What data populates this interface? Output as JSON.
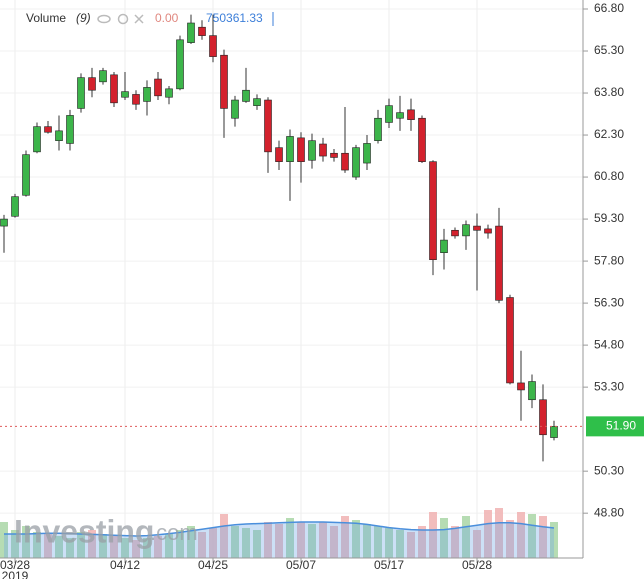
{
  "chart_data": {
    "type": "candlestick",
    "categories": [
      null,
      "03/28",
      null,
      null,
      null,
      null,
      null,
      null,
      null,
      null,
      null,
      "04/12",
      null,
      null,
      null,
      null,
      null,
      null,
      null,
      "04/25",
      null,
      null,
      null,
      null,
      null,
      null,
      null,
      "05/07",
      null,
      null,
      null,
      null,
      null,
      null,
      null,
      "05/17",
      null,
      null,
      null,
      null,
      null,
      null,
      null,
      "05/28",
      null,
      null,
      null,
      null,
      null,
      null,
      null
    ],
    "year_label": "2019",
    "open": [
      59.05,
      59.4,
      60.15,
      61.7,
      62.6,
      62.1,
      62.0,
      63.25,
      64.35,
      64.2,
      64.45,
      63.65,
      63.75,
      63.5,
      64.3,
      63.65,
      63.95,
      65.6,
      66.15,
      65.85,
      65.15,
      62.9,
      63.5,
      63.35,
      63.55,
      61.85,
      61.35,
      62.2,
      61.4,
      61.98,
      61.65,
      61.65,
      60.8,
      61.3,
      62.1,
      62.75,
      62.9,
      63.2,
      62.9,
      61.35,
      58.1,
      58.9,
      58.7,
      59.05,
      58.95,
      59.05,
      56.5,
      53.45,
      52.85,
      52.85,
      51.5
    ],
    "high": [
      59.45,
      60.2,
      61.75,
      62.75,
      62.8,
      63.0,
      63.2,
      64.5,
      64.7,
      64.7,
      64.55,
      64.55,
      63.9,
      64.25,
      64.55,
      64.05,
      65.85,
      66.6,
      66.4,
      66.6,
      65.35,
      63.7,
      64.7,
      63.75,
      63.65,
      62.1,
      62.5,
      62.4,
      62.35,
      62.2,
      61.8,
      63.3,
      61.95,
      62.3,
      63.2,
      63.6,
      63.7,
      63.6,
      63.0,
      61.4,
      58.95,
      59.0,
      59.25,
      59.5,
      59.1,
      59.7,
      56.6,
      54.6,
      53.75,
      53.4,
      52.1
    ],
    "low": [
      58.1,
      59.35,
      60.1,
      61.65,
      62.35,
      61.75,
      61.75,
      63.1,
      63.65,
      64.1,
      63.3,
      63.55,
      63.2,
      63.0,
      63.55,
      63.4,
      63.9,
      65.55,
      65.7,
      64.9,
      62.2,
      62.6,
      63.45,
      63.2,
      60.95,
      61.05,
      59.95,
      60.6,
      61.1,
      61.35,
      61.35,
      60.95,
      60.7,
      61.05,
      62.0,
      62.55,
      62.45,
      62.45,
      61.3,
      57.3,
      57.5,
      58.6,
      58.2,
      56.75,
      58.6,
      56.3,
      53.4,
      52.1,
      52.55,
      50.65,
      51.4
    ],
    "close": [
      59.3,
      60.1,
      61.6,
      62.6,
      62.4,
      62.45,
      63.0,
      64.35,
      63.9,
      64.6,
      63.45,
      63.85,
      63.4,
      64.0,
      63.7,
      63.95,
      65.7,
      66.3,
      65.85,
      65.1,
      63.25,
      63.55,
      63.9,
      63.6,
      61.7,
      61.35,
      62.25,
      61.35,
      62.1,
      61.55,
      61.5,
      61.05,
      61.85,
      62.0,
      62.9,
      63.35,
      63.1,
      62.85,
      61.35,
      57.85,
      58.55,
      58.7,
      59.1,
      58.9,
      58.8,
      56.4,
      53.45,
      53.2,
      53.5,
      51.6,
      51.9
    ],
    "up_color": "#3cb54a",
    "down_color": "#d3212d",
    "ylim": [
      47.2,
      66.8
    ],
    "yticks": [
      {
        "value": 48.8,
        "label": "48.80"
      },
      {
        "value": 50.3,
        "label": "50.30"
      },
      {
        "value": 53.3,
        "label": "53.30"
      },
      {
        "value": 54.8,
        "label": "54.80"
      },
      {
        "value": 56.3,
        "label": "56.30"
      },
      {
        "value": 57.8,
        "label": "57.80"
      },
      {
        "value": 59.3,
        "label": "59.30"
      },
      {
        "value": 60.8,
        "label": "60.80"
      },
      {
        "value": 62.3,
        "label": "62.30"
      },
      {
        "value": 63.8,
        "label": "63.80"
      },
      {
        "value": 65.3,
        "label": "65.30"
      },
      {
        "value": 66.8,
        "label": "66.80"
      }
    ],
    "last_price": {
      "value": 51.9,
      "label": "51.90"
    },
    "grid": true,
    "volume": {
      "name": "Volume",
      "period": "(9)",
      "zero_label": "0.00",
      "ma_label": "750361.33",
      "lim": [
        0,
        1500000
      ],
      "values": [
        900000,
        700000,
        800000,
        650000,
        600000,
        550000,
        500000,
        650000,
        700000,
        600000,
        550000,
        500000,
        450000,
        500000,
        550000,
        600000,
        700000,
        800000,
        650000,
        750000,
        1100000,
        800000,
        750000,
        700000,
        900000,
        850000,
        1000000,
        900000,
        850000,
        900000,
        800000,
        1050000,
        950000,
        850000,
        800000,
        750000,
        700000,
        650000,
        800000,
        1150000,
        1000000,
        800000,
        1050000,
        700000,
        1200000,
        1250000,
        950000,
        1150000,
        1100000,
        1050000,
        900000
      ],
      "ma": [
        600000,
        600000,
        600000,
        610000,
        620000,
        620000,
        610000,
        600000,
        590000,
        580000,
        570000,
        560000,
        550000,
        560000,
        580000,
        610000,
        640000,
        680000,
        720000,
        760000,
        800000,
        830000,
        850000,
        860000,
        870000,
        880000,
        890000,
        900000,
        900000,
        900000,
        890000,
        880000,
        870000,
        840000,
        800000,
        760000,
        730000,
        710000,
        700000,
        700000,
        710000,
        740000,
        780000,
        820000,
        860000,
        880000,
        880000,
        860000,
        820000,
        780000,
        750361.33
      ]
    },
    "watermark": "Investing",
    "watermark_suffix": ".com"
  }
}
